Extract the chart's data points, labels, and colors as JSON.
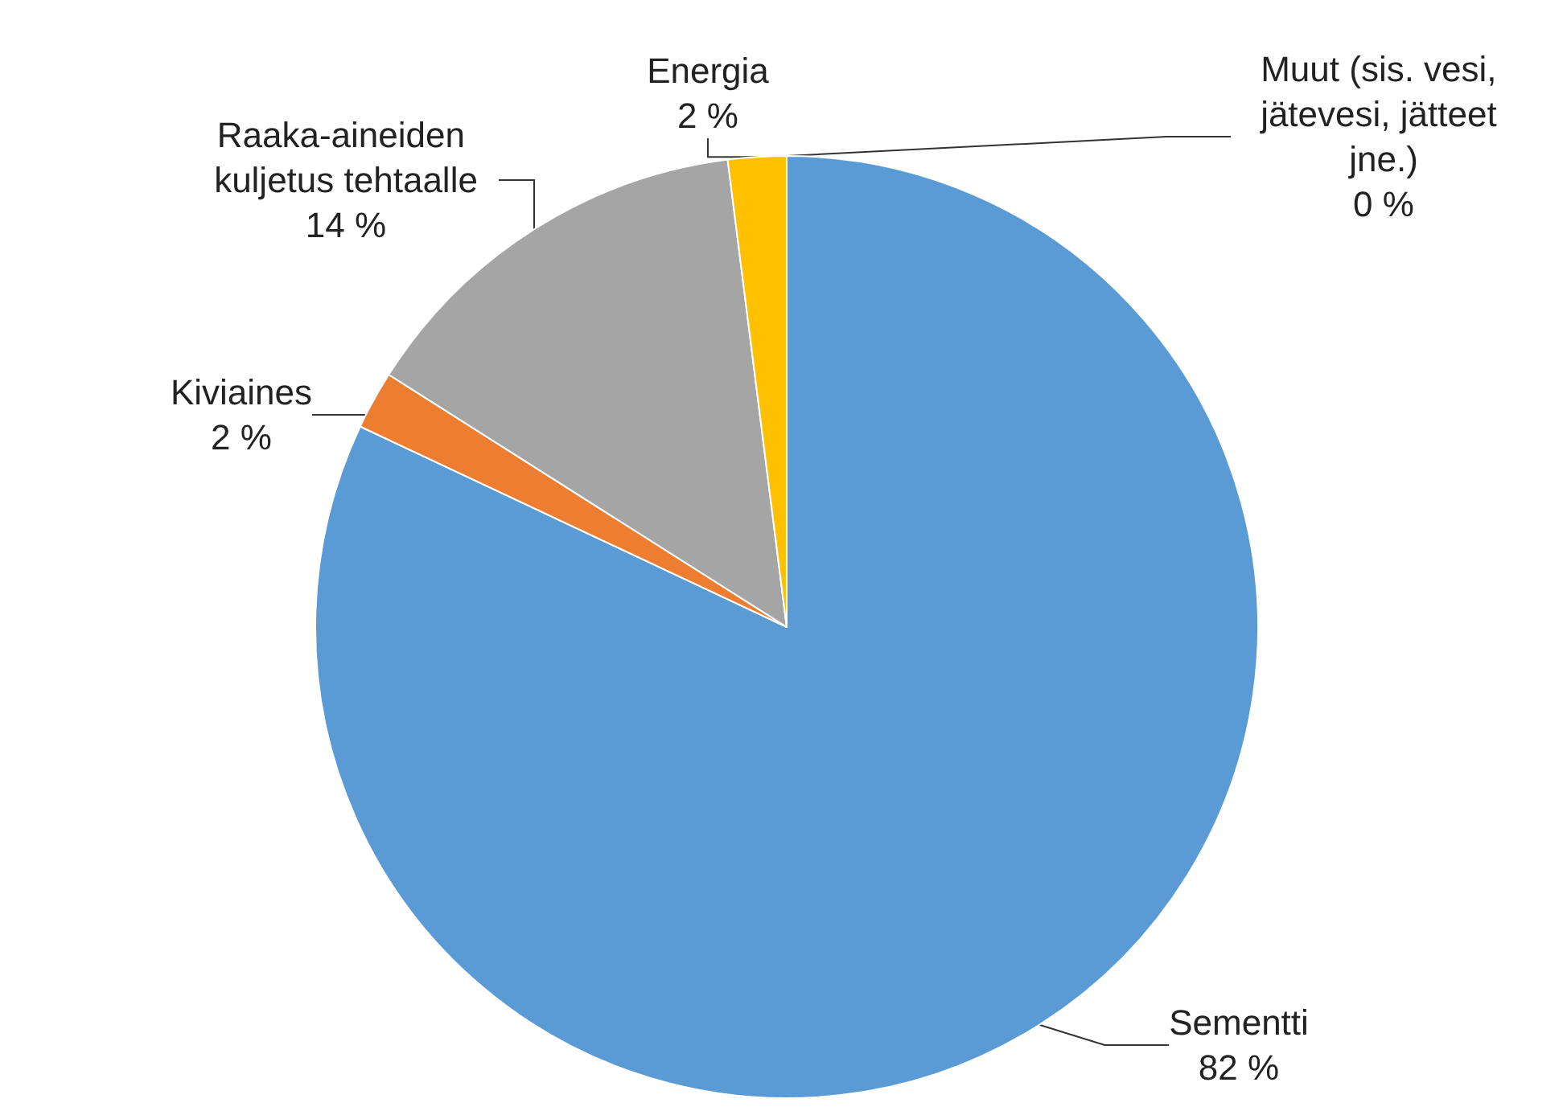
{
  "chart_data": {
    "type": "pie",
    "categories": [
      "Sementti",
      "Kiviaines",
      "Raaka-aineiden kuljetus tehtaalle",
      "Energia",
      "Muut (sis. vesi, jätevesi, jätteet jne.)"
    ],
    "values": [
      82,
      2,
      14,
      2,
      0
    ],
    "value_labels": [
      "82 %",
      "2 %",
      "14 %",
      "2 %",
      "0 %"
    ],
    "colors": [
      "#5b9bd5",
      "#ed7d31",
      "#a5a5a5",
      "#ffc000",
      "#4472c4"
    ],
    "legend": false
  }
}
